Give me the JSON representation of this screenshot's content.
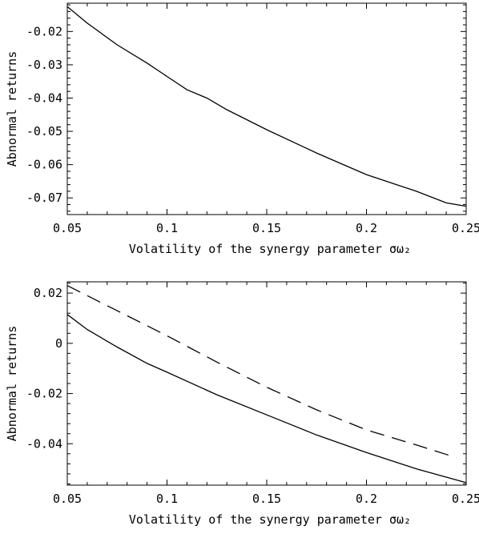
{
  "chart_data": [
    {
      "type": "line",
      "xlabel": "Volatility of the synergy parameter σω₂",
      "ylabel": "Abnormal returns",
      "xlim": [
        0.05,
        0.25
      ],
      "ylim": [
        -0.075,
        -0.0115
      ],
      "x_ticks": [
        0.05,
        0.1,
        0.15,
        0.2,
        0.25
      ],
      "x_tick_labels": [
        "0.05",
        "0.1",
        "0.15",
        "0.2",
        "0.25"
      ],
      "y_ticks": [
        -0.02,
        -0.03,
        -0.04,
        -0.05,
        -0.06,
        -0.07
      ],
      "y_tick_labels": [
        "-0.02",
        "-0.03",
        "-0.04",
        "-0.05",
        "-0.06",
        "-0.07"
      ],
      "grid": false,
      "series": [
        {
          "style": "solid",
          "x": [
            0.05,
            0.06,
            0.075,
            0.09,
            0.1,
            0.11,
            0.12,
            0.13,
            0.15,
            0.175,
            0.2,
            0.225,
            0.24,
            0.25
          ],
          "y": [
            -0.0125,
            -0.0175,
            -0.024,
            -0.0295,
            -0.0335,
            -0.0375,
            -0.04,
            -0.0435,
            -0.0495,
            -0.0565,
            -0.063,
            -0.068,
            -0.0715,
            -0.0725
          ]
        }
      ]
    },
    {
      "type": "line",
      "xlabel": "Volatility of the synergy parameter σω₂",
      "ylabel": "Abnormal returns",
      "xlim": [
        0.05,
        0.25
      ],
      "ylim": [
        -0.0565,
        0.0245
      ],
      "x_ticks": [
        0.05,
        0.1,
        0.15,
        0.2,
        0.25
      ],
      "x_tick_labels": [
        "0.05",
        "0.1",
        "0.15",
        "0.2",
        "0.25"
      ],
      "y_ticks": [
        0.02,
        0,
        -0.02,
        -0.04
      ],
      "y_tick_labels": [
        "0.02",
        "0",
        "-0.02",
        "-0.04"
      ],
      "grid": false,
      "series": [
        {
          "style": "solid",
          "x": [
            0.05,
            0.06,
            0.075,
            0.09,
            0.1,
            0.125,
            0.15,
            0.175,
            0.2,
            0.225,
            0.25
          ],
          "y": [
            0.0115,
            0.0055,
            -0.0015,
            -0.008,
            -0.0115,
            -0.0205,
            -0.0285,
            -0.0365,
            -0.0435,
            -0.05,
            -0.0555
          ]
        },
        {
          "style": "dashed",
          "x": [
            0.05,
            0.075,
            0.1,
            0.125,
            0.15,
            0.175,
            0.2,
            0.225,
            0.245
          ],
          "y": [
            0.023,
            0.013,
            0.003,
            -0.0075,
            -0.0175,
            -0.0265,
            -0.0345,
            -0.0405,
            -0.0455
          ]
        }
      ]
    }
  ]
}
